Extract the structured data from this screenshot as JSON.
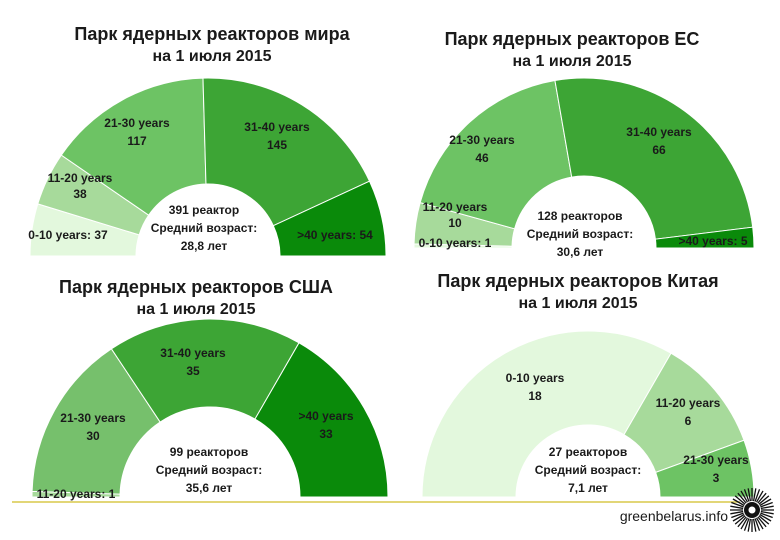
{
  "chart_data": [
    {
      "type": "pie",
      "shape": "half-donut",
      "title": "Парк ядерных реакторов мира",
      "subtitle": "на 1 июля 2015",
      "categories": [
        "0-10 years",
        "11-20 years",
        "21-30 years",
        "31-40 years",
        ">40 years"
      ],
      "values": [
        37,
        38,
        117,
        145,
        54
      ],
      "colors": [
        "#e3f8dd",
        "#a7da9b",
        "#6dc364",
        "#3da535",
        "#0a8a0a"
      ],
      "center_text": [
        "391 реактор",
        "Средний возраст:",
        "28,8 лет"
      ]
    },
    {
      "type": "pie",
      "shape": "half-donut",
      "title": "Парк ядерных реакторов ЕС",
      "subtitle": "на 1 июля 2015",
      "categories": [
        "0-10 years",
        "11-20 years",
        "21-30 years",
        "31-40 years",
        ">40 years"
      ],
      "values": [
        1,
        10,
        46,
        66,
        5
      ],
      "colors": [
        "#e3f8dd",
        "#a7da9b",
        "#6dc364",
        "#3da535",
        "#0a8a0a"
      ],
      "center_text": [
        "128 реакторов",
        "Средний возраст:",
        "30,6 лет"
      ]
    },
    {
      "type": "pie",
      "shape": "half-donut",
      "title": "Парк ядерных реакторов США",
      "subtitle": "на 1 июля 2015",
      "categories": [
        "11-20 years",
        "21-30 years",
        "31-40 years",
        ">40 years"
      ],
      "values": [
        1,
        30,
        35,
        33
      ],
      "colors": [
        "#a7da9b",
        "#76c06c",
        "#3da535",
        "#0a8a0a"
      ],
      "center_text": [
        "99 реакторов",
        "Средний возраст:",
        "35,6 лет"
      ]
    },
    {
      "type": "pie",
      "shape": "half-donut",
      "title": "Парк ядерных реакторов Китая",
      "subtitle": "на 1 июля 2015",
      "categories": [
        "0-10 years",
        "11-20 years",
        "21-30 years"
      ],
      "values": [
        18,
        6,
        3
      ],
      "colors": [
        "#e3f8dd",
        "#a7da9b",
        "#6dc364"
      ],
      "center_text": [
        "27 реакторов",
        "Средний возраст:",
        "7,1 лет"
      ]
    }
  ],
  "credit": "greenbelarus.info",
  "logo_icon": "sunburst-logo-icon"
}
